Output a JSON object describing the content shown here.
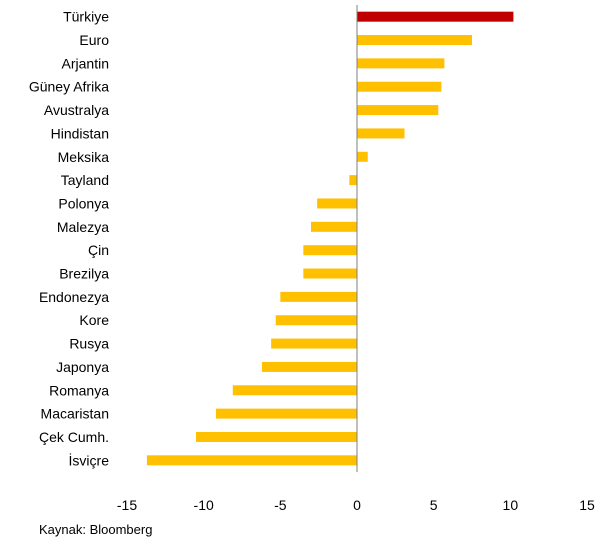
{
  "chart_data": {
    "type": "bar",
    "orientation": "horizontal",
    "categories": [
      "Türkiye",
      "Euro",
      "Arjantin",
      "Güney Afrika",
      "Avustralya",
      "Hindistan",
      "Meksika",
      "Tayland",
      "Polonya",
      "Malezya",
      "Çin",
      "Brezilya",
      "Endonezya",
      "Kore",
      "Rusya",
      "Japonya",
      "Romanya",
      "Macaristan",
      "Çek Cumh.",
      "İsviçre"
    ],
    "values": [
      10.2,
      7.5,
      5.7,
      5.5,
      5.3,
      3.1,
      0.7,
      -0.5,
      -2.6,
      -3.0,
      -3.5,
      -3.5,
      -5.0,
      -5.3,
      -5.6,
      -6.2,
      -8.1,
      -9.2,
      -10.5,
      -13.7
    ],
    "xlim": [
      -15,
      15
    ],
    "xticks": [
      -15,
      -10,
      -5,
      0,
      5,
      10,
      15
    ],
    "title": "",
    "xlabel": "",
    "ylabel": "",
    "grid": false,
    "legend": "none",
    "colors": {
      "default": "#FFC000",
      "highlight": "#C00000",
      "axis": "#7F7F7F"
    },
    "highlight_index": 0
  },
  "source": "Kaynak: Bloomberg"
}
